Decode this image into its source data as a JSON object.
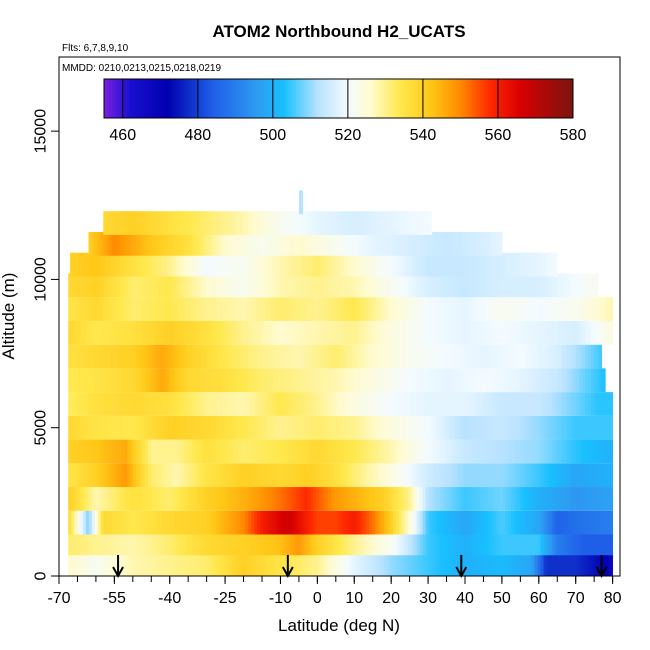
{
  "chart_data": {
    "type": "heatmap",
    "title": "ATOM2 Northbound H2_UCATS",
    "subtitle_flights": "Flts: 6,7,8,9,10",
    "subtitle_dates": "MMDD: 0210,0213,0215,0218,0219",
    "xlabel": "Latitude (deg N)",
    "ylabel": "Altitude (m)",
    "xlim": [
      -70,
      82
    ],
    "ylim": [
      0,
      17500
    ],
    "x_ticks": [
      -70,
      -55,
      -40,
      -25,
      -10,
      0,
      10,
      20,
      30,
      40,
      50,
      60,
      70,
      80
    ],
    "y_ticks": [
      0,
      5000,
      10000,
      15000
    ],
    "colorbar": {
      "range": [
        455,
        580
      ],
      "ticks": [
        460,
        480,
        500,
        520,
        540,
        560,
        580
      ],
      "stops": [
        {
          "v": 455,
          "c": "#7b1fe0"
        },
        {
          "v": 462,
          "c": "#1a0fd0"
        },
        {
          "v": 472,
          "c": "#0000b0"
        },
        {
          "v": 484,
          "c": "#1f5fe8"
        },
        {
          "v": 496,
          "c": "#2e9cf2"
        },
        {
          "v": 503,
          "c": "#18c0ff"
        },
        {
          "v": 512,
          "c": "#b8e2ff"
        },
        {
          "v": 520,
          "c": "#f4fbff"
        },
        {
          "v": 526,
          "c": "#fffbd0"
        },
        {
          "v": 534,
          "c": "#ffe84d"
        },
        {
          "v": 542,
          "c": "#ffc818"
        },
        {
          "v": 550,
          "c": "#ff8a00"
        },
        {
          "v": 558,
          "c": "#ff2800"
        },
        {
          "v": 566,
          "c": "#d80000"
        },
        {
          "v": 580,
          "c": "#7a1510"
        }
      ]
    },
    "arrows_lat": [
      -54,
      -8,
      39,
      77
    ],
    "layers": [
      {
        "alt": 400,
        "xmin": -67.5,
        "xmax": 80,
        "pts": [
          [
            -67,
            526
          ],
          [
            -60,
            522
          ],
          [
            -50,
            528
          ],
          [
            -40,
            530
          ],
          [
            -30,
            532
          ],
          [
            -20,
            540
          ],
          [
            -10,
            535
          ],
          [
            0,
            530
          ],
          [
            10,
            518
          ],
          [
            20,
            510
          ],
          [
            30,
            505
          ],
          [
            40,
            500
          ],
          [
            50,
            502
          ],
          [
            58,
            498
          ],
          [
            62,
            478
          ],
          [
            70,
            478
          ],
          [
            78,
            472
          ],
          [
            80,
            466
          ]
        ]
      },
      {
        "alt": 1100,
        "xmin": -67.5,
        "xmax": 80,
        "pts": [
          [
            -67,
            532
          ],
          [
            -60,
            530
          ],
          [
            -50,
            528
          ],
          [
            -40,
            532
          ],
          [
            -30,
            538
          ],
          [
            -20,
            540
          ],
          [
            -10,
            543
          ],
          [
            -5,
            548
          ],
          [
            0,
            540
          ],
          [
            10,
            530
          ],
          [
            20,
            522
          ],
          [
            30,
            505
          ],
          [
            40,
            500
          ],
          [
            50,
            505
          ],
          [
            60,
            505
          ],
          [
            65,
            490
          ],
          [
            72,
            484
          ],
          [
            80,
            484
          ]
        ]
      },
      {
        "alt": 1800,
        "xmin": -67.5,
        "xmax": 80,
        "pts": [
          [
            -67,
            536
          ],
          [
            -62,
            508
          ],
          [
            -58,
            538
          ],
          [
            -50,
            534
          ],
          [
            -40,
            538
          ],
          [
            -30,
            540
          ],
          [
            -20,
            550
          ],
          [
            -15,
            560
          ],
          [
            -8,
            568
          ],
          [
            -3,
            560
          ],
          [
            0,
            556
          ],
          [
            5,
            556
          ],
          [
            10,
            560
          ],
          [
            15,
            552
          ],
          [
            20,
            540
          ],
          [
            25,
            525
          ],
          [
            30,
            505
          ],
          [
            40,
            498
          ],
          [
            50,
            506
          ],
          [
            60,
            498
          ],
          [
            65,
            485
          ],
          [
            72,
            488
          ],
          [
            80,
            490
          ]
        ]
      },
      {
        "alt": 2600,
        "xmin": -67.5,
        "xmax": 80,
        "pts": [
          [
            -67,
            540
          ],
          [
            -60,
            528
          ],
          [
            -50,
            536
          ],
          [
            -40,
            532
          ],
          [
            -30,
            540
          ],
          [
            -20,
            545
          ],
          [
            -10,
            552
          ],
          [
            -3,
            558
          ],
          [
            5,
            548
          ],
          [
            10,
            545
          ],
          [
            18,
            540
          ],
          [
            25,
            530
          ],
          [
            30,
            512
          ],
          [
            40,
            505
          ],
          [
            50,
            508
          ],
          [
            60,
            500
          ],
          [
            70,
            495
          ],
          [
            80,
            497
          ]
        ]
      },
      {
        "alt": 3400,
        "xmin": -67.5,
        "xmax": 80,
        "pts": [
          [
            -67,
            535
          ],
          [
            -60,
            540
          ],
          [
            -52,
            548
          ],
          [
            -45,
            532
          ],
          [
            -38,
            528
          ],
          [
            -30,
            535
          ],
          [
            -20,
            540
          ],
          [
            -10,
            538
          ],
          [
            -2,
            540
          ],
          [
            5,
            536
          ],
          [
            12,
            530
          ],
          [
            20,
            524
          ],
          [
            30,
            515
          ],
          [
            40,
            510
          ],
          [
            50,
            510
          ],
          [
            60,
            505
          ],
          [
            70,
            498
          ],
          [
            80,
            500
          ]
        ]
      },
      {
        "alt": 4200,
        "xmin": -67.5,
        "xmax": 80,
        "pts": [
          [
            -67,
            540
          ],
          [
            -60,
            542
          ],
          [
            -52,
            546
          ],
          [
            -45,
            530
          ],
          [
            -38,
            530
          ],
          [
            -30,
            536
          ],
          [
            -20,
            532
          ],
          [
            -10,
            534
          ],
          [
            0,
            538
          ],
          [
            10,
            534
          ],
          [
            20,
            528
          ],
          [
            30,
            520
          ],
          [
            40,
            514
          ],
          [
            50,
            512
          ],
          [
            60,
            510
          ],
          [
            70,
            504
          ],
          [
            80,
            500
          ]
        ]
      },
      {
        "alt": 5000,
        "xmin": -67.5,
        "xmax": 80,
        "pts": [
          [
            -67,
            538
          ],
          [
            -60,
            535
          ],
          [
            -50,
            534
          ],
          [
            -40,
            540
          ],
          [
            -30,
            538
          ],
          [
            -20,
            534
          ],
          [
            -10,
            530
          ],
          [
            0,
            532
          ],
          [
            10,
            530
          ],
          [
            20,
            524
          ],
          [
            30,
            520
          ],
          [
            40,
            512
          ],
          [
            50,
            514
          ],
          [
            60,
            510
          ],
          [
            70,
            505
          ],
          [
            80,
            505
          ]
        ]
      },
      {
        "alt": 5800,
        "xmin": -67.5,
        "xmax": 80,
        "pts": [
          [
            -67,
            533
          ],
          [
            -60,
            536
          ],
          [
            -50,
            538
          ],
          [
            -40,
            536
          ],
          [
            -30,
            530
          ],
          [
            -20,
            528
          ],
          [
            -10,
            534
          ],
          [
            0,
            530
          ],
          [
            10,
            524
          ],
          [
            20,
            520
          ],
          [
            30,
            518
          ],
          [
            40,
            518
          ],
          [
            50,
            514
          ],
          [
            60,
            514
          ],
          [
            70,
            508
          ],
          [
            76,
            504
          ]
        ]
      },
      {
        "alt": 6600,
        "xmin": -67.5,
        "xmax": 78,
        "pts": [
          [
            -67,
            534
          ],
          [
            -60,
            535
          ],
          [
            -50,
            538
          ],
          [
            -42,
            546
          ],
          [
            -35,
            538
          ],
          [
            -25,
            536
          ],
          [
            -15,
            532
          ],
          [
            -5,
            530
          ],
          [
            5,
            528
          ],
          [
            15,
            524
          ],
          [
            25,
            520
          ],
          [
            35,
            518
          ],
          [
            45,
            520
          ],
          [
            55,
            518
          ],
          [
            65,
            514
          ],
          [
            72,
            508
          ],
          [
            78,
            503
          ]
        ]
      },
      {
        "alt": 7400,
        "xmin": -67.5,
        "xmax": 77,
        "pts": [
          [
            -67,
            536
          ],
          [
            -60,
            538
          ],
          [
            -50,
            540
          ],
          [
            -42,
            546
          ],
          [
            -35,
            540
          ],
          [
            -25,
            534
          ],
          [
            -15,
            530
          ],
          [
            -5,
            528
          ],
          [
            5,
            532
          ],
          [
            15,
            526
          ],
          [
            25,
            522
          ],
          [
            35,
            520
          ],
          [
            45,
            518
          ],
          [
            55,
            520
          ],
          [
            65,
            516
          ],
          [
            72,
            510
          ],
          [
            77,
            505
          ]
        ]
      },
      {
        "alt": 8200,
        "xmin": -67.5,
        "xmax": 80,
        "pts": [
          [
            -67,
            538
          ],
          [
            -60,
            534
          ],
          [
            -50,
            536
          ],
          [
            -40,
            540
          ],
          [
            -30,
            536
          ],
          [
            -20,
            530
          ],
          [
            -10,
            526
          ],
          [
            0,
            528
          ],
          [
            10,
            530
          ],
          [
            20,
            524
          ],
          [
            30,
            520
          ],
          [
            40,
            518
          ],
          [
            50,
            520
          ],
          [
            60,
            518
          ],
          [
            70,
            516
          ],
          [
            80,
            524
          ]
        ]
      },
      {
        "alt": 9000,
        "xmin": -67.5,
        "xmax": 80,
        "pts": [
          [
            -67,
            535
          ],
          [
            -60,
            538
          ],
          [
            -50,
            532
          ],
          [
            -40,
            534
          ],
          [
            -30,
            530
          ],
          [
            -20,
            528
          ],
          [
            -10,
            532
          ],
          [
            0,
            530
          ],
          [
            10,
            534
          ],
          [
            20,
            526
          ],
          [
            30,
            520
          ],
          [
            40,
            518
          ],
          [
            50,
            522
          ],
          [
            60,
            520
          ],
          [
            70,
            522
          ],
          [
            80,
            528
          ]
        ]
      },
      {
        "alt": 9800,
        "xmin": -67.5,
        "xmax": 76,
        "pts": [
          [
            -67,
            538
          ],
          [
            -60,
            540
          ],
          [
            -50,
            532
          ],
          [
            -40,
            534
          ],
          [
            -30,
            526
          ],
          [
            -20,
            522
          ],
          [
            -10,
            528
          ],
          [
            0,
            530
          ],
          [
            10,
            528
          ],
          [
            20,
            522
          ],
          [
            30,
            516
          ],
          [
            40,
            514
          ],
          [
            50,
            516
          ],
          [
            60,
            516
          ],
          [
            70,
            520
          ],
          [
            76,
            522
          ]
        ]
      },
      {
        "alt": 10500,
        "xmin": -67,
        "xmax": 65,
        "pts": [
          [
            -67,
            540
          ],
          [
            -60,
            542
          ],
          [
            -50,
            536
          ],
          [
            -40,
            530
          ],
          [
            -30,
            520
          ],
          [
            -20,
            522
          ],
          [
            -10,
            528
          ],
          [
            0,
            532
          ],
          [
            10,
            526
          ],
          [
            20,
            520
          ],
          [
            30,
            514
          ],
          [
            40,
            514
          ],
          [
            50,
            516
          ],
          [
            60,
            518
          ],
          [
            65,
            520
          ]
        ]
      },
      {
        "alt": 11200,
        "xmin": -62,
        "xmax": 50,
        "pts": [
          [
            -62,
            540
          ],
          [
            -55,
            550
          ],
          [
            -45,
            542
          ],
          [
            -35,
            536
          ],
          [
            -25,
            526
          ],
          [
            -15,
            522
          ],
          [
            -5,
            526
          ],
          [
            5,
            522
          ],
          [
            15,
            518
          ],
          [
            25,
            516
          ],
          [
            35,
            514
          ],
          [
            45,
            516
          ],
          [
            50,
            518
          ]
        ]
      },
      {
        "alt": 11900,
        "xmin": -58,
        "xmax": 31,
        "pts": [
          [
            -58,
            538
          ],
          [
            -50,
            540
          ],
          [
            -40,
            536
          ],
          [
            -30,
            532
          ],
          [
            -20,
            528
          ],
          [
            -10,
            522
          ],
          [
            0,
            518
          ],
          [
            10,
            516
          ],
          [
            20,
            518
          ],
          [
            31,
            520
          ]
        ]
      },
      {
        "alt": 12600,
        "xmin": -5,
        "xmax": -4,
        "pts": [
          [
            -5,
            512
          ],
          [
            -4,
            512
          ]
        ]
      }
    ]
  }
}
